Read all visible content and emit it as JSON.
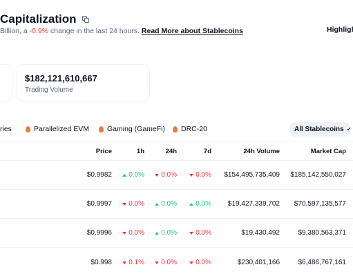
{
  "header": {
    "title": "Capitalization",
    "subtitle_prefix": " Billion, a ",
    "subtitle_change": "-0.9%",
    "subtitle_suffix": " change in the last 24 hours. ",
    "read_more": "Read More about Stablecoins",
    "highlights": "Highlight"
  },
  "stats": {
    "trading_volume_value": "$182,121,610,667",
    "trading_volume_label": "Trading Volume"
  },
  "filters": {
    "items": [
      {
        "label": "ries"
      },
      {
        "label": "Parallelized EVM"
      },
      {
        "label": "Gaming (GameFi)"
      },
      {
        "label": "DRC-20"
      }
    ],
    "dropdown_label": "All Stablecoins"
  },
  "table": {
    "headers": {
      "price": "Price",
      "h1": "1h",
      "h24": "24h",
      "d7": "7d",
      "volume": "24h Volume",
      "mcap": "Market Cap"
    },
    "rows": [
      {
        "price": "$0.9982",
        "h1": "0.0%",
        "h1_dir": "up",
        "h24": "0.0%",
        "h24_dir": "down",
        "d7": "0.0%",
        "d7_dir": "down",
        "volume": "$154,495,735,409",
        "mcap": "$185,142,550,027"
      },
      {
        "price": "$0.9997",
        "h1": "0.0%",
        "h1_dir": "down",
        "h24": "0.0%",
        "h24_dir": "up",
        "d7": "0.0%",
        "d7_dir": "up",
        "volume": "$19,427,339,702",
        "mcap": "$70,597,135,577"
      },
      {
        "price": "$0.9996",
        "h1": "0.0%",
        "h1_dir": "down",
        "h24": "0.0%",
        "h24_dir": "up",
        "d7": "0.0%",
        "d7_dir": "down",
        "volume": "$19,430,492",
        "mcap": "$9,380,563,371"
      },
      {
        "price": "$0.998",
        "h1": "0.1%",
        "h1_dir": "down",
        "h24": "0.0%",
        "h24_dir": "down",
        "d7": "0.0%",
        "d7_dir": "down",
        "volume": "$230,401,166",
        "mcap": "$6,486,767,161"
      }
    ]
  },
  "colors": {
    "positive": "#16c784",
    "negative": "#ea3943",
    "text_primary": "#0d1421",
    "text_secondary": "#58667e",
    "flame": "#f0793a"
  }
}
